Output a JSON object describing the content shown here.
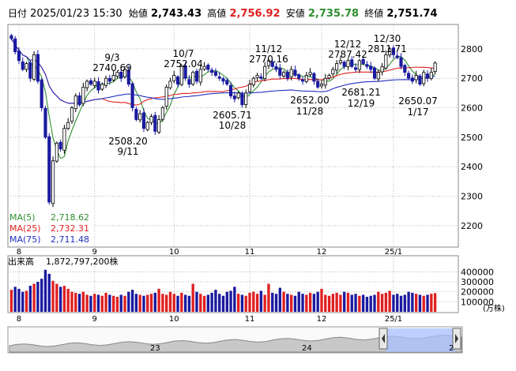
{
  "header": {
    "date_label": "日付",
    "datetime": "2025/01/23 15:30",
    "open_label": "始値",
    "open": "2,743.43",
    "high_label": "高値",
    "high": "2,756.92",
    "low_label": "安値",
    "low": "2,735.78",
    "close_label": "終値",
    "close": "2,751.74"
  },
  "legend": {
    "ma5_label": "MA(5)",
    "ma5": "2,718.62",
    "ma25_label": "MA(25)",
    "ma25": "2,732.31",
    "ma75_label": "MA(75)",
    "ma75": "2,711.48"
  },
  "volume_header": {
    "label": "出来高",
    "value": "1,872,797,200株"
  },
  "volume_unit": "(万株)",
  "overview": {
    "labels": [
      "23",
      "24",
      "2"
    ]
  },
  "colors": {
    "up": "#000000",
    "down": "#1a1aa0",
    "ma5": "#2f8f2f",
    "ma25": "#e02020",
    "ma75": "#2030c0",
    "vol_up": "#e02020",
    "vol_down": "#1a1aa0",
    "grid": "#b8b8b8"
  },
  "chart_data": [
    {
      "type": "candlestick",
      "title": "",
      "x_tick_labels": [
        "8",
        "9",
        "10",
        "11",
        "12",
        "25/1"
      ],
      "y_ticks": [
        2200,
        2300,
        2400,
        2500,
        2600,
        2700,
        2800
      ],
      "ylim": [
        2130,
        2880
      ],
      "grid": true,
      "annotations": [
        {
          "date": "9/3",
          "value": "2740.69",
          "position": "above"
        },
        {
          "date": "9/11",
          "value": "2508.20",
          "position": "below"
        },
        {
          "date": "10/7",
          "value": "2752.04",
          "position": "above"
        },
        {
          "date": "10/28",
          "value": "2605.71",
          "position": "below"
        },
        {
          "date": "11/12",
          "value": "2770.16",
          "position": "above"
        },
        {
          "date": "11/28",
          "value": "2652.00",
          "position": "below"
        },
        {
          "date": "12/12",
          "value": "2787.42",
          "position": "above"
        },
        {
          "date": "12/19",
          "value": "2681.21",
          "position": "below"
        },
        {
          "date": "12/30",
          "value": "2811.71",
          "position": "above"
        },
        {
          "date": "1/17",
          "value": "2650.07",
          "position": "below"
        }
      ],
      "closes": [
        2835,
        2790,
        2760,
        2730,
        2750,
        2700,
        2780,
        2690,
        2600,
        2500,
        2280,
        2420,
        2480,
        2460,
        2530,
        2550,
        2600,
        2640,
        2610,
        2670,
        2690,
        2680,
        2690,
        2660,
        2680,
        2700,
        2690,
        2710,
        2720,
        2700,
        2730,
        2680,
        2600,
        2560,
        2580,
        2530,
        2550,
        2570,
        2520,
        2560,
        2600,
        2670,
        2690,
        2710,
        2680,
        2740,
        2700,
        2680,
        2720,
        2690,
        2730,
        2740,
        2730,
        2720,
        2710,
        2700,
        2690,
        2680,
        2640,
        2630,
        2650,
        2610,
        2650,
        2680,
        2700,
        2710,
        2700,
        2740,
        2760,
        2740,
        2730,
        2710,
        2720,
        2700,
        2730,
        2710,
        2700,
        2690,
        2710,
        2720,
        2690,
        2670,
        2680,
        2700,
        2710,
        2730,
        2750,
        2760,
        2740,
        2760,
        2740,
        2730,
        2760,
        2750,
        2740,
        2730,
        2700,
        2720,
        2740,
        2780,
        2800,
        2780,
        2770,
        2740,
        2720,
        2700,
        2690,
        2710,
        2680,
        2720,
        2700,
        2720,
        2751.74
      ]
    },
    {
      "type": "bar",
      "title": "",
      "y_ticks": [
        100000,
        200000,
        300000,
        400000
      ],
      "ylim": [
        0,
        450000
      ],
      "x_tick_labels": [
        "8",
        "9",
        "10",
        "11",
        "12",
        "25/1"
      ],
      "values": [
        220000,
        250000,
        230000,
        200000,
        210000,
        260000,
        280000,
        300000,
        330000,
        420000,
        380000,
        310000,
        280000,
        250000,
        260000,
        230000,
        200000,
        190000,
        180000,
        200000,
        170000,
        160000,
        180000,
        170000,
        160000,
        190000,
        170000,
        160000,
        150000,
        170000,
        160000,
        200000,
        220000,
        180000,
        170000,
        160000,
        170000,
        180000,
        190000,
        230000,
        180000,
        170000,
        200000,
        180000,
        160000,
        190000,
        170000,
        160000,
        280000,
        200000,
        180000,
        160000,
        170000,
        190000,
        220000,
        180000,
        160000,
        200000,
        210000,
        250000,
        180000,
        170000,
        160000,
        190000,
        200000,
        180000,
        210000,
        170000,
        280000,
        190000,
        180000,
        240000,
        200000,
        180000,
        170000,
        160000,
        200000,
        180000,
        170000,
        190000,
        180000,
        200000,
        230000,
        170000,
        160000,
        180000,
        190000,
        170000,
        200000,
        190000,
        170000,
        180000,
        160000,
        170000,
        150000,
        160000,
        170000,
        200000,
        180000,
        190000,
        210000,
        170000,
        180000,
        160000,
        170000,
        200000,
        190000,
        180000,
        170000,
        160000,
        170000,
        180000,
        187000
      ]
    }
  ]
}
